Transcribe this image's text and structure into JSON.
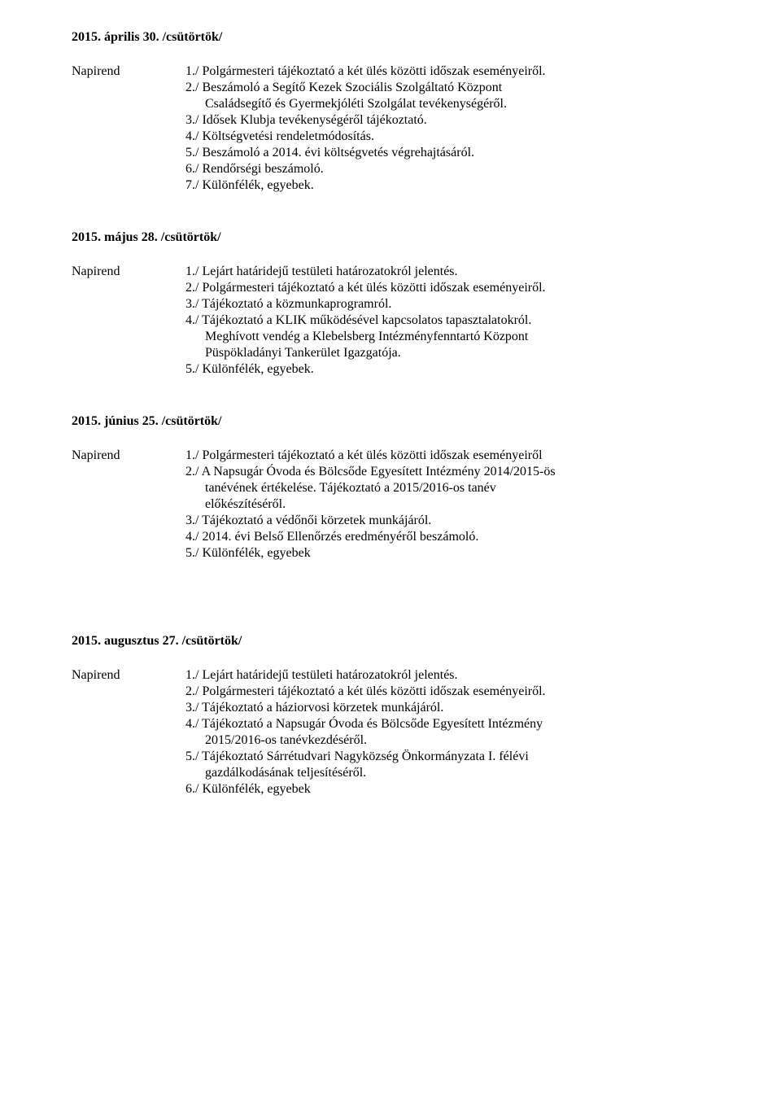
{
  "sections": [
    {
      "heading": "2015. április 30. /csütörtök/",
      "label": "Napirend",
      "lines": [
        {
          "text": "1./ Polgármesteri tájékoztató a két ülés közötti időszak eseményeiről.",
          "indent": false
        },
        {
          "text": "2./ Beszámoló a Segítő Kezek Szociális Szolgáltató Központ",
          "indent": false
        },
        {
          "text": "Családsegítő és Gyermekjóléti Szolgálat tevékenységéről.",
          "indent": true
        },
        {
          "text": "3./ Idősek Klubja tevékenységéről tájékoztató.",
          "indent": false
        },
        {
          "text": "4./ Költségvetési rendeletmódosítás.",
          "indent": false
        },
        {
          "text": "5./ Beszámoló a 2014. évi költségvetés végrehajtásáról.",
          "indent": false
        },
        {
          "text": "6./ Rendőrségi beszámoló.",
          "indent": false
        },
        {
          "text": "7./ Különfélék, egyebek.",
          "indent": false
        }
      ]
    },
    {
      "heading": "2015. május 28. /csütörtök/",
      "label": "Napirend",
      "lines": [
        {
          "text": "1./ Lejárt határidejű testületi határozatokról jelentés.",
          "indent": false
        },
        {
          "text": "2./ Polgármesteri tájékoztató a két ülés közötti időszak eseményeiről.",
          "indent": false
        },
        {
          "text": "3./ Tájékoztató a közmunkaprogramról.",
          "indent": false
        },
        {
          "text": "4./ Tájékoztató a KLIK működésével kapcsolatos tapasztalatokról.",
          "indent": false
        },
        {
          "text": "Meghívott vendég a Klebelsberg Intézményfenntartó Központ",
          "indent": true
        },
        {
          "text": "Püspökladányi Tankerület Igazgatója.",
          "indent": true
        },
        {
          "text": "5./ Különfélék, egyebek.",
          "indent": false
        }
      ]
    },
    {
      "heading": "2015. június 25. /csütörtök/",
      "label": "Napirend",
      "lines": [
        {
          "text": "1./ Polgármesteri tájékoztató a két ülés közötti időszak eseményeiről",
          "indent": false
        },
        {
          "text": "2./ A Napsugár Óvoda és Bölcsőde Egyesített Intézmény 2014/2015-ös",
          "indent": false
        },
        {
          "text": "tanévének értékelése.   Tájékoztató a 2015/2016-os tanév",
          "indent": true
        },
        {
          "text": "előkészítéséről.",
          "indent": true
        },
        {
          "text": "3./ Tájékoztató a védőnői körzetek munkájáról.",
          "indent": false
        },
        {
          "text": "4./ 2014. évi Belső Ellenőrzés eredményéről beszámoló.",
          "indent": false
        },
        {
          "text": "5./ Különfélék, egyebek",
          "indent": false
        }
      ]
    },
    {
      "heading": "2015. augusztus 27. /csütörtök/",
      "label": "Napirend",
      "lines": [
        {
          "text": "1./ Lejárt határidejű testületi határozatokról jelentés.",
          "indent": false
        },
        {
          "text": " 2./ Polgármesteri tájékoztató a két ülés közötti időszak eseményeiről.",
          "indent": false
        },
        {
          "text": " 3./ Tájékoztató a háziorvosi körzetek munkájáról.",
          "indent": false
        },
        {
          "text": " 4./ Tájékoztató a Napsugár Óvoda és Bölcsőde Egyesített Intézmény",
          "indent": false
        },
        {
          "text": "2015/2016-os tanévkezdéséről.",
          "indent": true
        },
        {
          "text": " 5./ Tájékoztató  Sárrétudvari Nagyközség Önkormányzata I. félévi",
          "indent": false
        },
        {
          "text": "gazdálkodásának teljesítéséről.",
          "indent": true
        },
        {
          "text": " 6./ Különfélék, egyebek",
          "indent": false
        }
      ]
    }
  ]
}
